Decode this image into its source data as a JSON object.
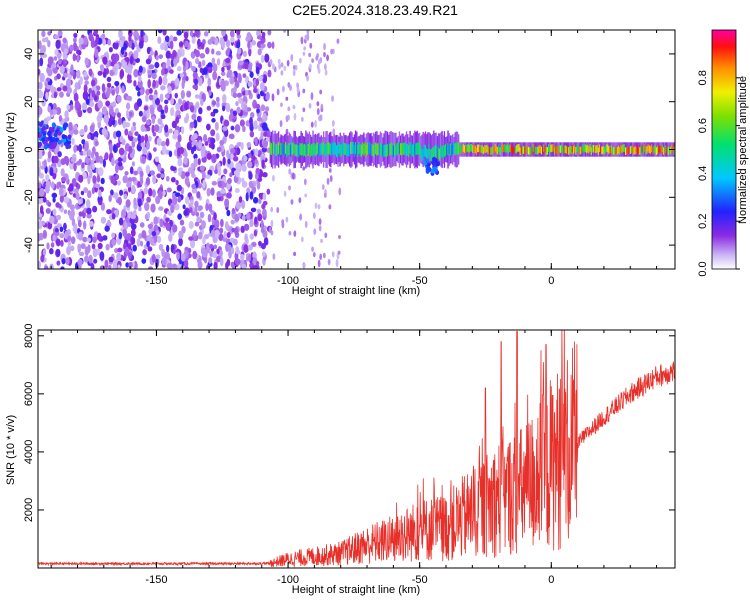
{
  "title": "C2E5.2024.318.23.49.R21",
  "chart_data": [
    {
      "type": "heatmap",
      "xlabel": "Height of straight line (km)",
      "ylabel": "Frequency (Hz)",
      "xlim": [
        -195,
        47
      ],
      "ylim": [
        -50,
        50
      ],
      "x_ticks": [
        -150,
        -100,
        -50,
        0
      ],
      "x_tick_labels": [
        "-150",
        "-100",
        "-50",
        "0"
      ],
      "y_ticks": [
        -40,
        -20,
        0,
        20,
        40
      ],
      "y_tick_labels": [
        "-40",
        "-20",
        "0",
        "20",
        "40"
      ],
      "grid": false,
      "colorbar": {
        "label": "Normalized spectral amplitude",
        "range": [
          0.0,
          1.0
        ],
        "ticks": [
          0.0,
          0.2,
          0.4,
          0.6,
          0.8
        ],
        "tick_labels": [
          "0.0",
          "0.2",
          "0.4",
          "0.6",
          "0.8"
        ],
        "colormap": "rainbow (white-lavender, purple, blue, cyan, green, yellow, orange, red, magenta)"
      },
      "features": {
        "scattered_noise_region_x": [
          -195,
          -107
        ],
        "sparse_region_x": [
          -107,
          -80
        ],
        "tone_band_x": [
          -107,
          47
        ],
        "tone_band_freq_hz": [
          -3,
          3
        ],
        "strong_signal_x": [
          -35,
          47
        ]
      }
    },
    {
      "type": "line",
      "xlabel": "Height of straight line (km)",
      "ylabel": "SNR (10 * v/v)",
      "xlim": [
        -195,
        47
      ],
      "ylim": [
        0,
        8200
      ],
      "x_ticks": [
        -150,
        -100,
        -50,
        0
      ],
      "x_tick_labels": [
        "-150",
        "-100",
        "-50",
        "0"
      ],
      "y_ticks": [
        2000,
        4000,
        6000,
        8000
      ],
      "y_tick_labels": [
        "2000",
        "4000",
        "6000",
        "8000"
      ],
      "grid": false,
      "series_color": "#e8302a",
      "trend": {
        "x": [
          -195,
          -150,
          -120,
          -107,
          -100,
          -90,
          -80,
          -70,
          -60,
          -50,
          -40,
          -30,
          -20,
          -10,
          0,
          10,
          20,
          30,
          40,
          47
        ],
        "y": [
          150,
          150,
          150,
          160,
          300,
          400,
          500,
          800,
          1000,
          1300,
          1400,
          1900,
          2400,
          2700,
          3600,
          4300,
          5200,
          6000,
          6600,
          6800
        ]
      },
      "spikes": [
        {
          "x": -19,
          "y": 7800
        },
        {
          "x": -13,
          "y": 8150
        },
        {
          "x": -2,
          "y": 7700
        },
        {
          "x": -25,
          "y": 6200
        }
      ]
    }
  ],
  "colors": {
    "line": "#e8302a",
    "axis": "#000000",
    "background": "#ffffff"
  }
}
